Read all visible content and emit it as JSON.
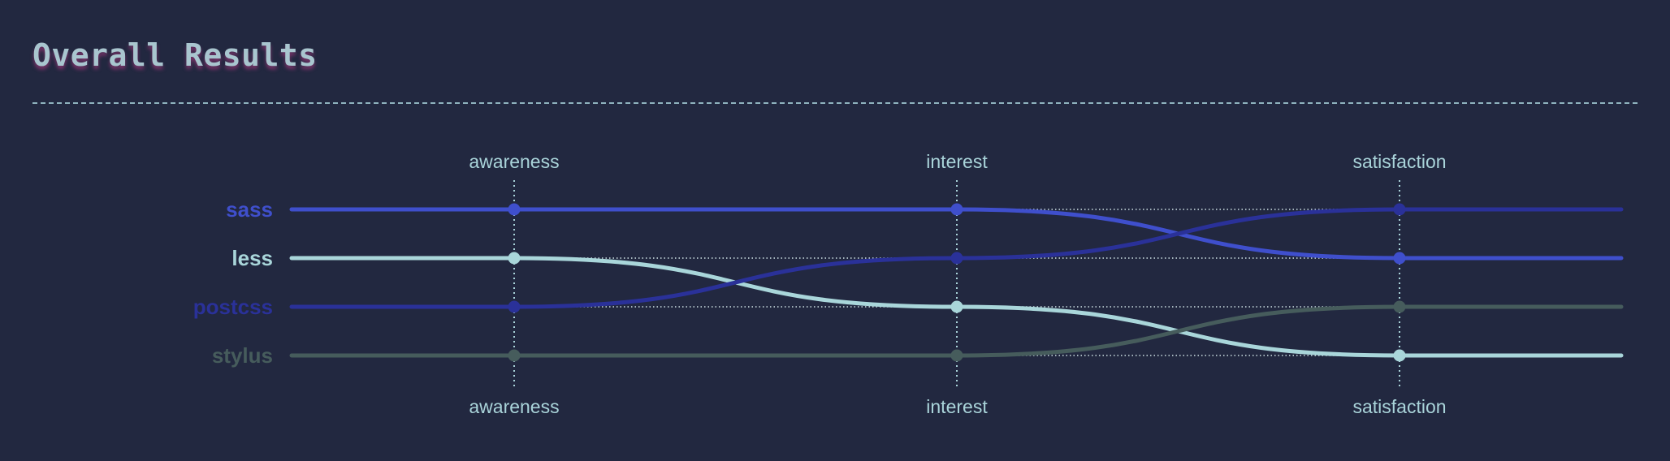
{
  "header": {
    "title": "Overall Results"
  },
  "chart_data": {
    "type": "line",
    "subtype": "rank-bump",
    "title": "Overall Results",
    "categories": [
      "awareness",
      "interest",
      "satisfaction"
    ],
    "rank_order": "1 = top",
    "series": [
      {
        "name": "sass",
        "color": "#3f4fcc",
        "ranks": [
          1,
          1,
          2
        ]
      },
      {
        "name": "less",
        "color": "#a9d6da",
        "ranks": [
          2,
          3,
          4
        ]
      },
      {
        "name": "postcss",
        "color": "#2a3199",
        "ranks": [
          3,
          2,
          1
        ]
      },
      {
        "name": "stylus",
        "color": "#465c5c",
        "ranks": [
          4,
          4,
          3
        ]
      }
    ],
    "axis_labels_top": true,
    "axis_labels_bottom": true,
    "grid": "dotted"
  }
}
